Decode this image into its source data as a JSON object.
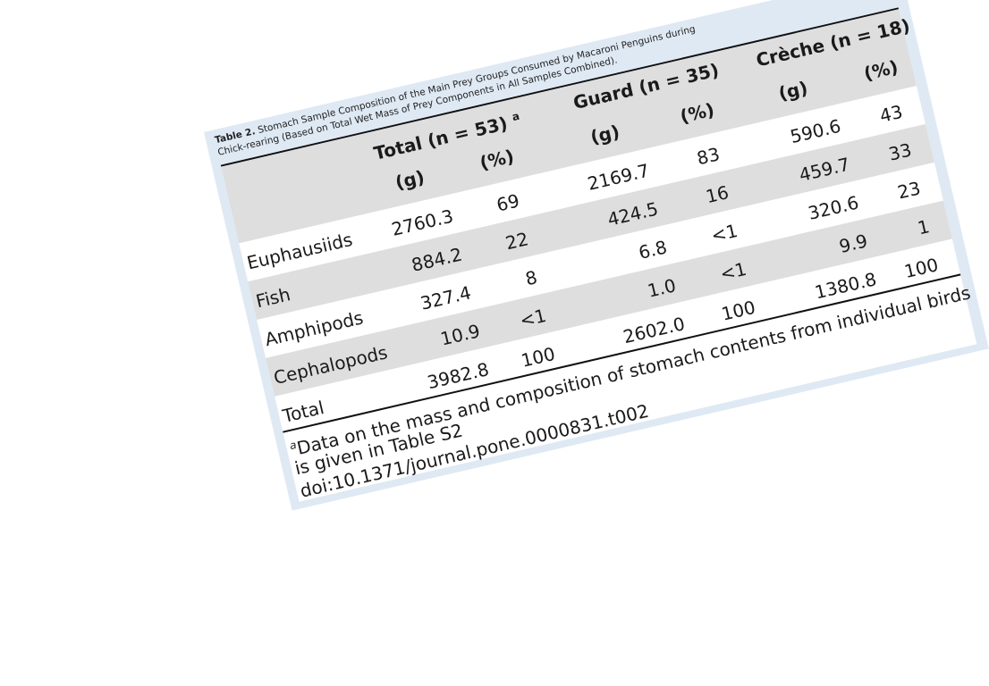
{
  "table": {
    "caption_label": "Table 2.",
    "caption_line1": "Stomach Sample Composition of the Main Prey Groups Consumed by Macaroni Penguins during",
    "caption_line2": "Chick-rearing (Based on Total Wet Mass of Prey Components in All Samples Combined).",
    "groups": [
      {
        "label": "Total (n = 53)",
        "note": "a"
      },
      {
        "label": "Guard (n = 35)",
        "note": ""
      },
      {
        "label": "Crèche (n = 18)",
        "note": ""
      }
    ],
    "subheaders": [
      "(g)",
      "(%)"
    ],
    "rows": [
      {
        "label": "Euphausiids",
        "values": [
          "2760.3",
          "69",
          "2169.7",
          "83",
          "590.6",
          "43"
        ]
      },
      {
        "label": "Fish",
        "values": [
          "884.2",
          "22",
          "424.5",
          "16",
          "459.7",
          "33"
        ]
      },
      {
        "label": "Amphipods",
        "values": [
          "327.4",
          "8",
          "6.8",
          "<1",
          "320.6",
          "23"
        ]
      },
      {
        "label": "Cephalopods",
        "values": [
          "10.9",
          "<1",
          "1.0",
          "<1",
          "9.9",
          "1"
        ]
      },
      {
        "label": "Total",
        "values": [
          "3982.8",
          "100",
          "2602.0",
          "100",
          "1380.8",
          "100"
        ]
      }
    ],
    "footnote_mark": "a",
    "footnote_line1": "Data on the mass and composition of stomach contents from individual birds",
    "footnote_line2": "is given in Table S2",
    "doi": "doi:10.1371/journal.pone.0000831.t002"
  },
  "colors": {
    "frame": "#dfe9f4",
    "band": "#dedede",
    "rule": "#111111",
    "text": "#1a1a1a"
  }
}
